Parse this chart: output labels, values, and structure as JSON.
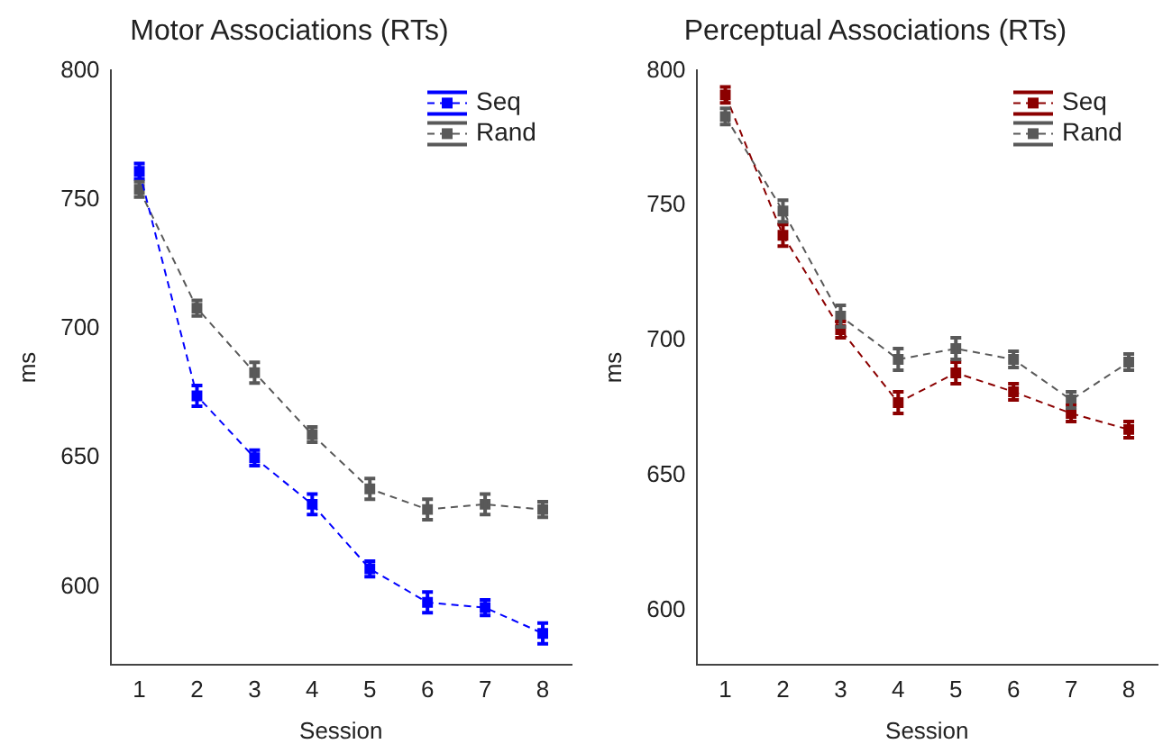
{
  "chart_data": [
    {
      "type": "line",
      "title": "Motor Associations (RTs)",
      "xlabel": "Session",
      "ylabel": "ms",
      "categories": [
        "1",
        "2",
        "3",
        "4",
        "5",
        "6",
        "7",
        "8"
      ],
      "ylim": [
        570,
        800
      ],
      "yticks": [
        600,
        650,
        700,
        750,
        800
      ],
      "grid": false,
      "legend": "top right",
      "marker": "square",
      "line_style": "dashed",
      "series": [
        {
          "name": "Seq",
          "color": "#0000ff",
          "values": [
            761,
            674,
            650,
            632,
            607,
            594,
            592,
            582
          ],
          "errors": [
            3,
            4,
            3,
            4,
            3,
            4,
            3,
            4
          ]
        },
        {
          "name": "Rand",
          "color": "#595959",
          "values": [
            754,
            708,
            683,
            659,
            638,
            630,
            632,
            630
          ],
          "errors": [
            3,
            3,
            4,
            3,
            4,
            4,
            4,
            3
          ]
        }
      ]
    },
    {
      "type": "line",
      "title": "Perceptual Associations (RTs)",
      "xlabel": "Session",
      "ylabel": "ms",
      "categories": [
        "1",
        "2",
        "3",
        "4",
        "5",
        "6",
        "7",
        "8"
      ],
      "ylim": [
        580,
        800
      ],
      "yticks": [
        600,
        650,
        700,
        750,
        800
      ],
      "grid": false,
      "legend": "top right",
      "marker": "square",
      "line_style": "dashed",
      "series": [
        {
          "name": "Seq",
          "color": "#8b0000",
          "values": [
            791,
            739,
            704,
            677,
            688,
            681,
            673,
            667
          ],
          "errors": [
            3,
            4,
            3,
            4,
            4,
            3,
            3,
            3
          ]
        },
        {
          "name": "Rand",
          "color": "#595959",
          "values": [
            783,
            748,
            709,
            693,
            697,
            693,
            678,
            692
          ],
          "errors": [
            3,
            4,
            4,
            4,
            4,
            3,
            3,
            3
          ]
        }
      ]
    }
  ]
}
